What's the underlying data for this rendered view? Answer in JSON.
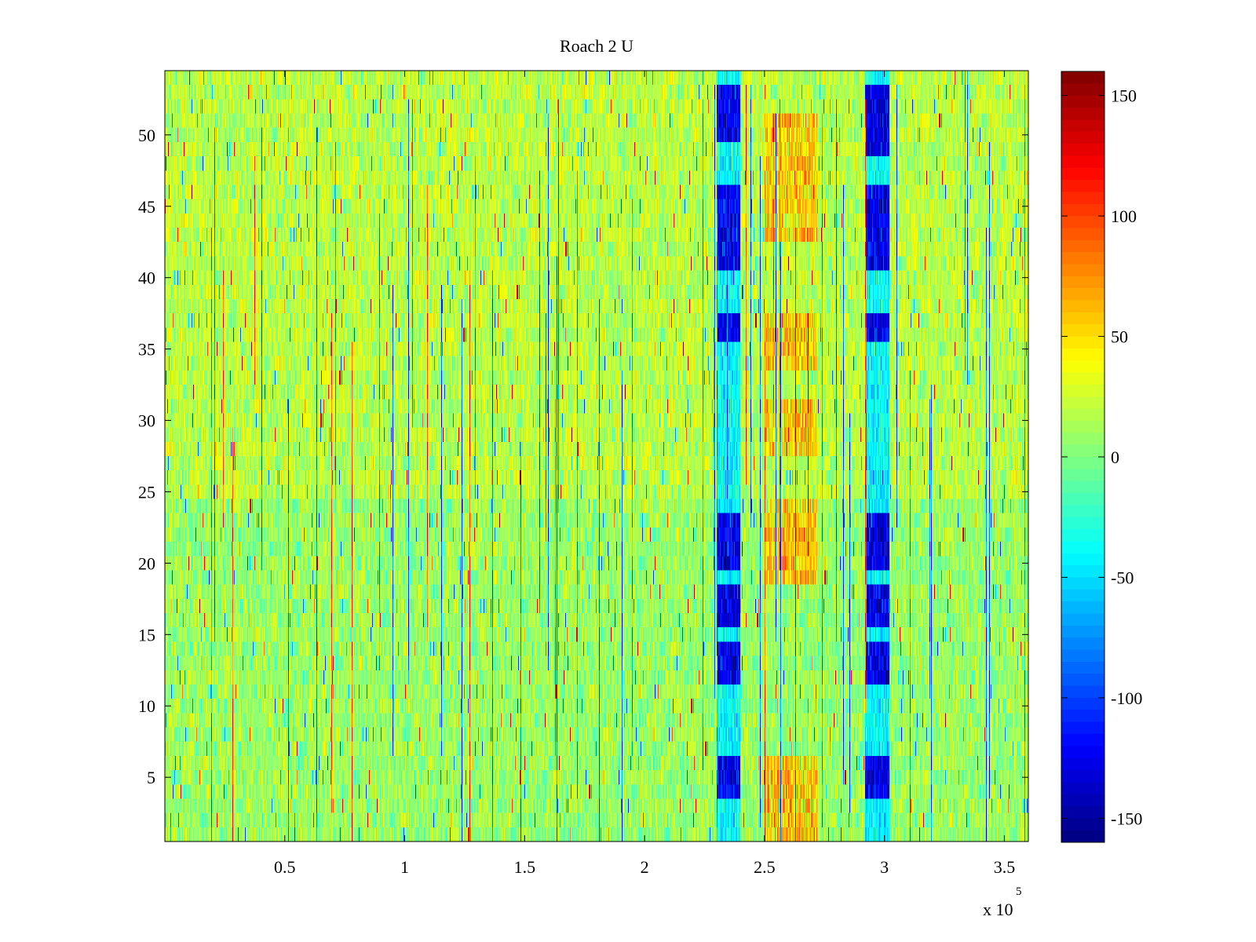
{
  "chart_data": {
    "type": "heatmap",
    "title": "Roach 2 U",
    "xlabel": "",
    "ylabel": "",
    "x_exponent_label": {
      "base": "x 10",
      "exp": "5"
    },
    "xlim": [
      0,
      360000
    ],
    "ylim": [
      0.5,
      54.5
    ],
    "n_rows": 54,
    "x_ticks": [
      50000,
      100000,
      150000,
      200000,
      250000,
      300000,
      350000
    ],
    "x_tick_labels": [
      "0.5",
      "1",
      "1.5",
      "2",
      "2.5",
      "3",
      "3.5"
    ],
    "y_ticks": [
      5,
      10,
      15,
      20,
      25,
      30,
      35,
      40,
      45,
      50
    ],
    "y_tick_labels": [
      "5",
      "10",
      "15",
      "20",
      "25",
      "30",
      "35",
      "40",
      "45",
      "50"
    ],
    "colorbar": {
      "colormap": "jet",
      "clim": [
        -160,
        160
      ],
      "ticks": [
        150,
        100,
        50,
        0,
        -50,
        -100,
        -150
      ],
      "tick_labels": [
        "150",
        "100",
        "50",
        "0",
        "-50",
        "-100",
        "-150"
      ]
    },
    "baseline_value": 0,
    "upper_rows_value": 18,
    "lower_rows_value": 8,
    "split_row": 24,
    "features": [
      {
        "kind": "strong_negative_band",
        "x_range": [
          230000,
          240000
        ],
        "rows": [
          [
            12,
            14
          ],
          [
            16,
            18
          ],
          [
            20,
            23
          ],
          [
            41,
            46
          ],
          [
            50,
            53
          ],
          [
            36,
            37
          ],
          [
            4,
            6
          ]
        ],
        "value": -125
      },
      {
        "kind": "strong_negative_band",
        "x_range": [
          292000,
          302000
        ],
        "rows": [
          [
            12,
            14
          ],
          [
            16,
            18
          ],
          [
            20,
            23
          ],
          [
            41,
            46
          ],
          [
            49,
            53
          ],
          [
            36,
            37
          ],
          [
            4,
            6
          ]
        ],
        "value": -130
      },
      {
        "kind": "moderate_negative_band",
        "x_range": [
          230000,
          240000
        ],
        "rows": [
          [
            1,
            54
          ]
        ],
        "value": -40
      },
      {
        "kind": "moderate_negative_band",
        "x_range": [
          292000,
          302000
        ],
        "rows": [
          [
            1,
            54
          ]
        ],
        "value": -40
      },
      {
        "kind": "positive_band",
        "x_range": [
          250000,
          272000
        ],
        "rows": [
          [
            1,
            6
          ],
          [
            19,
            24
          ],
          [
            28,
            31
          ],
          [
            34,
            37
          ],
          [
            43,
            51
          ]
        ],
        "value": 55
      }
    ]
  }
}
